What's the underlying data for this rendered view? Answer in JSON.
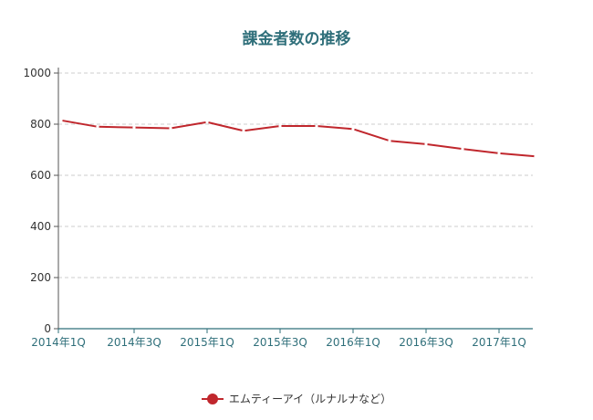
{
  "chart_data": {
    "type": "line",
    "title": "課金者数の推移",
    "xlabel": "",
    "ylabel": "",
    "x": [
      "2014年1Q",
      "2014年2Q",
      "2014年3Q",
      "2014年4Q",
      "2015年1Q",
      "2015年2Q",
      "2015年3Q",
      "2015年4Q",
      "2016年1Q",
      "2016年2Q",
      "2016年3Q",
      "2016年4Q",
      "2017年1Q",
      "2017年2Q"
    ],
    "x_tick_labels": [
      "2014年1Q",
      "2014年3Q",
      "2015年1Q",
      "2015年3Q",
      "2016年1Q",
      "2016年3Q",
      "2017年1Q"
    ],
    "y_ticks": [
      "0",
      "200",
      "400",
      "600",
      "800",
      "1000"
    ],
    "ylim": [
      0,
      1000
    ],
    "grid": true,
    "legend_position": "bottom",
    "series": [
      {
        "name": "エムティーアイ（ルナルナなど）",
        "color": "#c0272d",
        "values": [
          815,
          790,
          787,
          784,
          808,
          774,
          793,
          793,
          781,
          735,
          722,
          703,
          686,
          674
        ]
      }
    ]
  }
}
